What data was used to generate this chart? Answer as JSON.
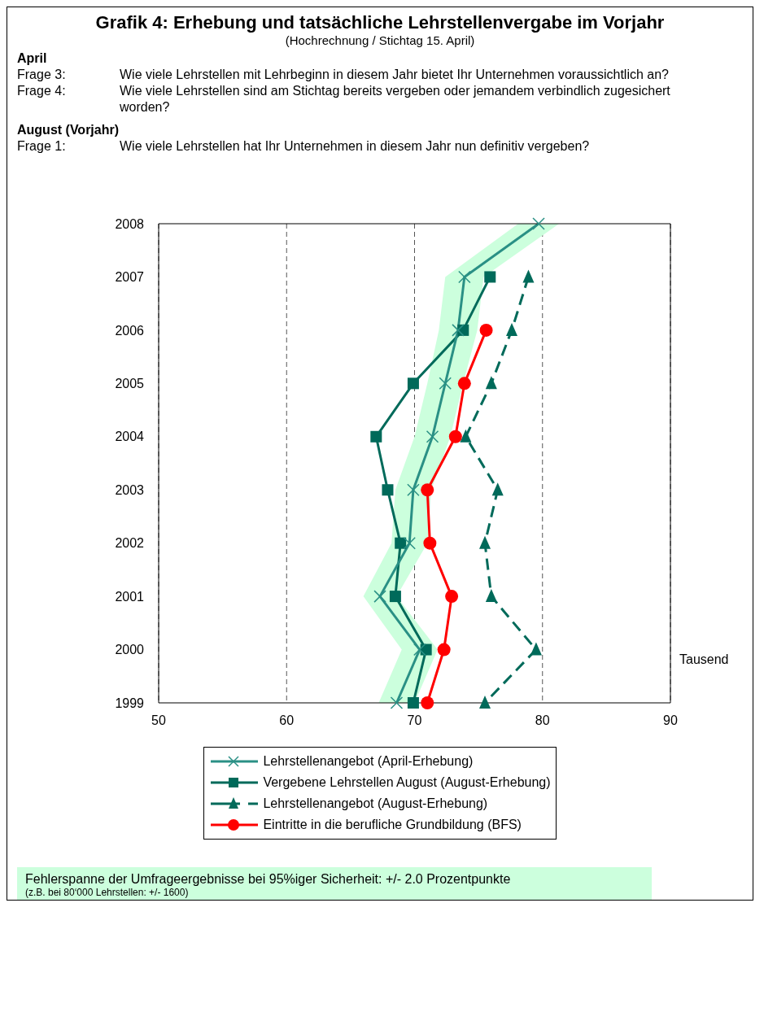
{
  "chart_data": {
    "type": "line",
    "orientation": "horizontal",
    "title": "Grafik 4: Erhebung und tatsächliche Lehrstellenvergabe im Vorjahr",
    "subtitle": "(Hochrechnung / Stichtag 15. April)",
    "annotations": [
      "April",
      "Frage 3:",
      "Wie viele Lehrstellen mit Lehrbeginn in diesem Jahr bietet Ihr Unternehmen voraussichtlich an?",
      "Frage 4:",
      "Wie viele Lehrstellen sind am Stichtag bereits vergeben oder jemandem verbindlich zugesichert worden?",
      "August (Vorjahr)",
      "Frage 1:",
      "Wie viele Lehrstellen hat Ihr Unternehmen in diesem Jahr nun definitiv vergeben?",
      "Fehlerspanne der Umfrageergebnisse bei 95%iger Sicherheit: +/- 2.0 Prozentpunkte",
      "(z.B. bei 80‘000 Lehrstellen: +/- 1600)"
    ],
    "xlabel": "Tausend",
    "categories": [
      "2008",
      "2007",
      "2006",
      "2005",
      "2004",
      "2003",
      "2002",
      "2001",
      "2000",
      "1999"
    ],
    "xlim": [
      50,
      90
    ],
    "xticks": [
      50,
      60,
      70,
      80,
      90
    ],
    "grid": "x",
    "legend": "bottom",
    "series": [
      {
        "name": "Lehrstellenangebot (April-Erhebung)",
        "color": "#2a9085",
        "marker": "cross",
        "line_style": "solid",
        "values": [
          79.7,
          73.9,
          73.4,
          72.4,
          71.4,
          69.9,
          69.6,
          67.3,
          70.4,
          68.6
        ],
        "lower": [
          78.1,
          72.4,
          71.9,
          71.0,
          70.0,
          68.5,
          68.2,
          66.0,
          69.0,
          67.2
        ],
        "upper": [
          81.3,
          75.4,
          74.9,
          73.8,
          72.8,
          71.3,
          71.0,
          68.6,
          71.8,
          70.0
        ]
      },
      {
        "name": "Vergebene Lehrstellen August (August-Erhebung)",
        "color": "#006a5a",
        "marker": "square",
        "line_style": "solid",
        "values": [
          null,
          75.9,
          73.8,
          69.9,
          67.0,
          67.9,
          68.9,
          68.5,
          70.9,
          69.9
        ]
      },
      {
        "name": "Lehrstellenangebot (August-Erhebung)",
        "color": "#006a5a",
        "marker": "triangle",
        "line_style": "dashed",
        "values": [
          null,
          78.9,
          77.6,
          76.0,
          74.0,
          76.5,
          75.5,
          76.0,
          79.5,
          75.5
        ]
      },
      {
        "name": "Eintritte in die berufliche Grundbildung (BFS)",
        "color": "#ff0000",
        "marker": "circle",
        "line_style": "solid",
        "values": [
          null,
          null,
          75.6,
          73.9,
          73.2,
          71.0,
          71.2,
          72.9,
          72.3,
          71.0
        ]
      }
    ]
  }
}
